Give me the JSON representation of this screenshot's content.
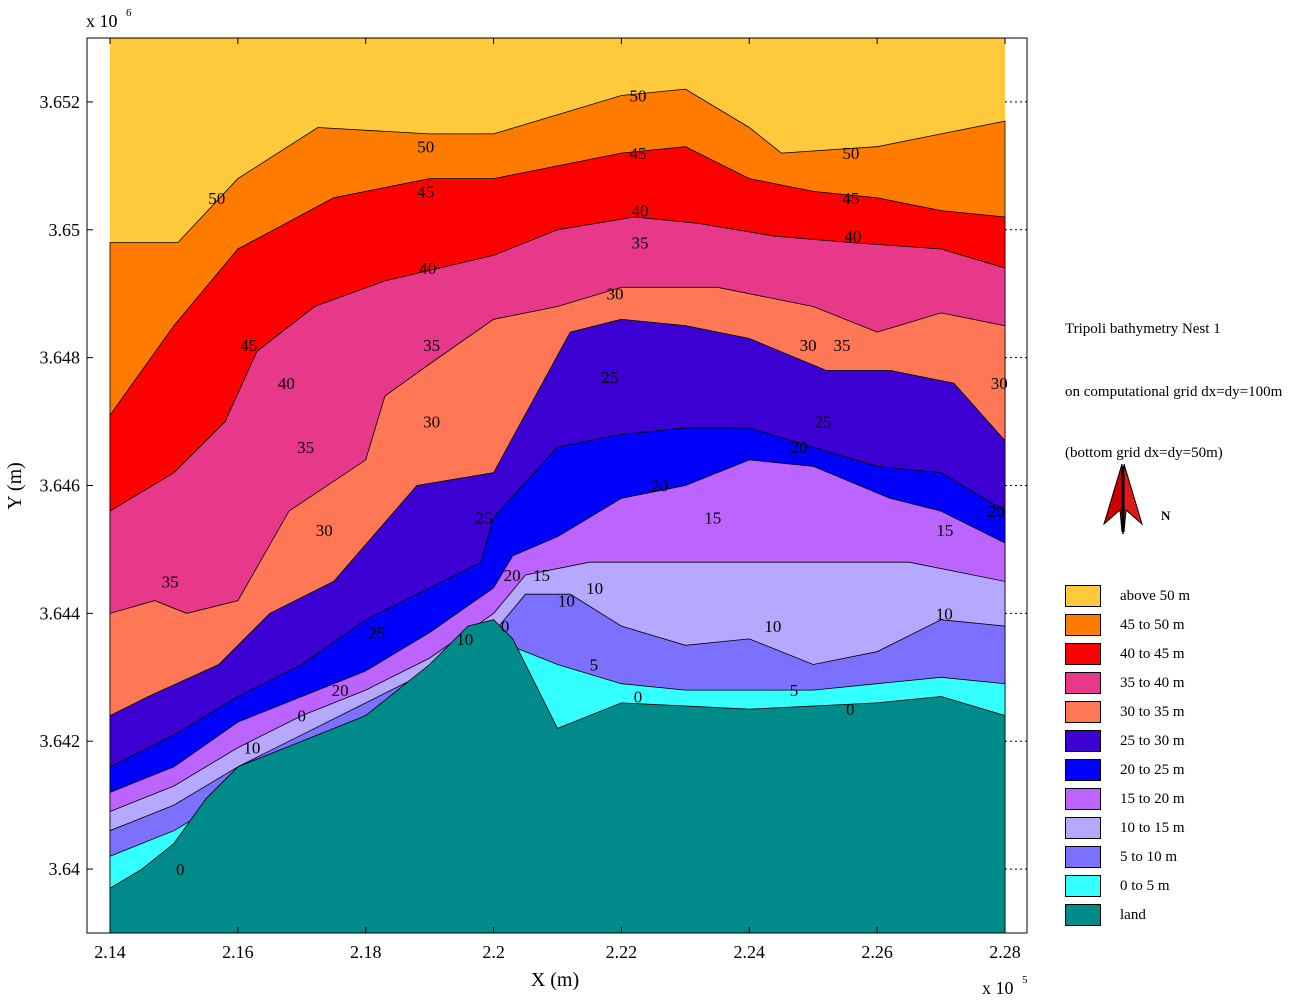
{
  "chart_data": {
    "type": "contour",
    "title_lines": [
      "Tripoli bathymetry Nest 1",
      "on computational grid dx=dy=100m",
      "(bottom grid dx=dy=50m)"
    ],
    "xlabel": "X (m)",
    "ylabel": "Y (m)",
    "x_multiplier_label": "x 10",
    "x_multiplier_exp": "5",
    "y_multiplier_label": "x 10",
    "y_multiplier_exp": "6",
    "xlim": [
      2.14,
      2.28
    ],
    "ylim": [
      3.639,
      3.653
    ],
    "x_ticks": [
      2.14,
      2.16,
      2.18,
      2.2,
      2.22,
      2.24,
      2.26,
      2.28
    ],
    "x_tick_labels": [
      "2.14",
      "2.16",
      "2.18",
      "2.2",
      "2.22",
      "2.24",
      "2.26",
      "2.28"
    ],
    "y_ticks": [
      3.64,
      3.642,
      3.644,
      3.646,
      3.648,
      3.65,
      3.652
    ],
    "y_tick_labels": [
      "3.64",
      "3.642",
      "3.644",
      "3.646",
      "3.648",
      "3.65",
      "3.652"
    ],
    "legend": [
      {
        "label": "above 50 m",
        "color": "#ffc93c"
      },
      {
        "label": "45 to 50 m",
        "color": "#ff7b00"
      },
      {
        "label": "40 to 45 m",
        "color": "#ff0000"
      },
      {
        "label": "35 to 40 m",
        "color": "#e8388a"
      },
      {
        "label": "30 to 35 m",
        "color": "#ff7755"
      },
      {
        "label": "25 to 30 m",
        "color": "#3c00d2"
      },
      {
        "label": "20 to 25 m",
        "color": "#0000ff"
      },
      {
        "label": "15 to 20 m",
        "color": "#bc64ff"
      },
      {
        "label": "10 to 15 m",
        "color": "#b6a8ff"
      },
      {
        "label": "5 to 10 m",
        "color": "#7c70ff"
      },
      {
        "label": "0 to 5 m",
        "color": "#33ffff"
      },
      {
        "label": "land",
        "color": "#008b8b"
      }
    ],
    "bands": [
      {
        "name": "above 50 m",
        "color": "#ffc93c",
        "boundary": [
          [
            2.14,
            3.6498
          ],
          [
            2.1506,
            3.6498
          ],
          [
            2.16,
            3.6508
          ],
          [
            2.1725,
            3.6516
          ],
          [
            2.19,
            3.6515
          ],
          [
            2.2,
            3.6515
          ],
          [
            2.21,
            3.6518
          ],
          [
            2.22,
            3.6521
          ],
          [
            2.23,
            3.6522
          ],
          [
            2.24,
            3.6516
          ],
          [
            2.245,
            3.6512
          ],
          [
            2.26,
            3.6513
          ],
          [
            2.27,
            3.6515
          ],
          [
            2.28,
            3.6517
          ]
        ]
      },
      {
        "name": "45 to 50 m",
        "color": "#ff7b00",
        "boundary": [
          [
            2.14,
            3.6471
          ],
          [
            2.15,
            3.6485
          ],
          [
            2.16,
            3.6497
          ],
          [
            2.175,
            3.6505
          ],
          [
            2.19,
            3.6508
          ],
          [
            2.2,
            3.6508
          ],
          [
            2.21,
            3.651
          ],
          [
            2.22,
            3.6512
          ],
          [
            2.23,
            3.6513
          ],
          [
            2.24,
            3.6508
          ],
          [
            2.25,
            3.6506
          ],
          [
            2.26,
            3.6505
          ],
          [
            2.27,
            3.6503
          ],
          [
            2.28,
            3.6502
          ]
        ]
      },
      {
        "name": "40 to 45 m",
        "color": "#ff0000",
        "boundary": [
          [
            2.14,
            3.6456
          ],
          [
            2.15,
            3.6462
          ],
          [
            2.158,
            3.647
          ],
          [
            2.163,
            3.6481
          ],
          [
            2.172,
            3.6488
          ],
          [
            2.183,
            3.6492
          ],
          [
            2.2,
            3.6496
          ],
          [
            2.21,
            3.65
          ],
          [
            2.222,
            3.6502
          ],
          [
            2.232,
            3.6501
          ],
          [
            2.244,
            3.6499
          ],
          [
            2.256,
            3.6498
          ],
          [
            2.27,
            3.6497
          ],
          [
            2.28,
            3.6494
          ]
        ]
      },
      {
        "name": "35 to 40 m",
        "color": "#e8388a",
        "boundary": [
          [
            2.14,
            3.644
          ],
          [
            2.147,
            3.6442
          ],
          [
            2.152,
            3.644
          ],
          [
            2.16,
            3.6442
          ],
          [
            2.168,
            3.6456
          ],
          [
            2.18,
            3.6464
          ],
          [
            2.183,
            3.6474
          ],
          [
            2.19,
            3.6479
          ],
          [
            2.2,
            3.6486
          ],
          [
            2.21,
            3.6488
          ],
          [
            2.22,
            3.6491
          ],
          [
            2.235,
            3.6491
          ],
          [
            2.25,
            3.6488
          ],
          [
            2.26,
            3.6484
          ],
          [
            2.27,
            3.6487
          ],
          [
            2.28,
            3.6485
          ]
        ]
      },
      {
        "name": "30 to 35 m",
        "color": "#ff7755",
        "boundary": [
          [
            2.14,
            3.6424
          ],
          [
            2.146,
            3.6427
          ],
          [
            2.157,
            3.6432
          ],
          [
            2.165,
            3.644
          ],
          [
            2.175,
            3.6445
          ],
          [
            2.188,
            3.646
          ],
          [
            2.2,
            3.6462
          ],
          [
            2.206,
            3.6473
          ],
          [
            2.212,
            3.6484
          ],
          [
            2.22,
            3.6486
          ],
          [
            2.23,
            3.6485
          ],
          [
            2.24,
            3.6483
          ],
          [
            2.252,
            3.6478
          ],
          [
            2.262,
            3.6478
          ],
          [
            2.272,
            3.6476
          ],
          [
            2.28,
            3.6467
          ]
        ]
      },
      {
        "name": "25 to 30 m",
        "color": "#3c00d2",
        "boundary": [
          [
            2.14,
            3.6416
          ],
          [
            2.15,
            3.6421
          ],
          [
            2.16,
            3.6427
          ],
          [
            2.17,
            3.6432
          ],
          [
            2.18,
            3.6439
          ],
          [
            2.19,
            3.6444
          ],
          [
            2.198,
            3.6448
          ],
          [
            2.2,
            3.6455
          ],
          [
            2.21,
            3.6466
          ],
          [
            2.22,
            3.6468
          ],
          [
            2.23,
            3.6469
          ],
          [
            2.24,
            3.6469
          ],
          [
            2.25,
            3.6466
          ],
          [
            2.26,
            3.6463
          ],
          [
            2.27,
            3.6462
          ],
          [
            2.28,
            3.6456
          ]
        ]
      },
      {
        "name": "20 to 25 m",
        "color": "#0000ff",
        "boundary": [
          [
            2.14,
            3.6412
          ],
          [
            2.15,
            3.6416
          ],
          [
            2.16,
            3.6423
          ],
          [
            2.17,
            3.6427
          ],
          [
            2.18,
            3.6431
          ],
          [
            2.19,
            3.6437
          ],
          [
            2.2,
            3.6444
          ],
          [
            2.203,
            3.6449
          ],
          [
            2.21,
            3.6452
          ],
          [
            2.22,
            3.6458
          ],
          [
            2.23,
            3.646
          ],
          [
            2.24,
            3.6464
          ],
          [
            2.25,
            3.6463
          ],
          [
            2.262,
            3.6458
          ],
          [
            2.27,
            3.6456
          ],
          [
            2.28,
            3.6451
          ]
        ]
      },
      {
        "name": "15 to 20 m",
        "color": "#bc64ff",
        "boundary": [
          [
            2.14,
            3.6409
          ],
          [
            2.15,
            3.6413
          ],
          [
            2.16,
            3.6419
          ],
          [
            2.17,
            3.6424
          ],
          [
            2.18,
            3.6428
          ],
          [
            2.19,
            3.6433
          ],
          [
            2.2,
            3.644
          ],
          [
            2.205,
            3.6446
          ],
          [
            2.215,
            3.6448
          ],
          [
            2.225,
            3.6448
          ],
          [
            2.24,
            3.6448
          ],
          [
            2.255,
            3.6448
          ],
          [
            2.265,
            3.6448
          ],
          [
            2.275,
            3.6446
          ],
          [
            2.28,
            3.6445
          ]
        ]
      },
      {
        "name": "10 to 15 m",
        "color": "#b6a8ff",
        "boundary": [
          [
            2.14,
            3.6406
          ],
          [
            2.15,
            3.641
          ],
          [
            2.16,
            3.6416
          ],
          [
            2.17,
            3.6421
          ],
          [
            2.18,
            3.6426
          ],
          [
            2.19,
            3.6431
          ],
          [
            2.2,
            3.6437
          ],
          [
            2.205,
            3.6443
          ],
          [
            2.212,
            3.6443
          ],
          [
            2.22,
            3.6438
          ],
          [
            2.23,
            3.6435
          ],
          [
            2.24,
            3.6436
          ],
          [
            2.25,
            3.6432
          ],
          [
            2.26,
            3.6434
          ],
          [
            2.27,
            3.6439
          ],
          [
            2.28,
            3.6438
          ]
        ]
      },
      {
        "name": "5 to 10 m",
        "color": "#7c70ff",
        "boundary": [
          [
            2.14,
            3.6402
          ],
          [
            2.15,
            3.6406
          ],
          [
            2.16,
            3.6412
          ],
          [
            2.17,
            3.6418
          ],
          [
            2.18,
            3.6424
          ],
          [
            2.19,
            3.643
          ],
          [
            2.2,
            3.6436
          ],
          [
            2.21,
            3.6432
          ],
          [
            2.22,
            3.6429
          ],
          [
            2.23,
            3.6428
          ],
          [
            2.24,
            3.6428
          ],
          [
            2.25,
            3.6428
          ],
          [
            2.26,
            3.6429
          ],
          [
            2.27,
            3.643
          ],
          [
            2.28,
            3.6429
          ]
        ]
      },
      {
        "name": "0 to 5 m",
        "color": "#33ffff",
        "boundary": [
          [
            2.14,
            3.6397
          ],
          [
            2.145,
            3.64
          ],
          [
            2.15,
            3.6404
          ],
          [
            2.155,
            3.6411
          ],
          [
            2.16,
            3.6416
          ],
          [
            2.17,
            3.642
          ],
          [
            2.18,
            3.6424
          ],
          [
            2.19,
            3.6432
          ],
          [
            2.196,
            3.6438
          ],
          [
            2.2,
            3.6439
          ],
          [
            2.203,
            3.6436
          ],
          [
            2.21,
            3.6422
          ],
          [
            2.22,
            3.6426
          ],
          [
            2.24,
            3.6425
          ],
          [
            2.26,
            3.6426
          ],
          [
            2.27,
            3.6427
          ],
          [
            2.28,
            3.6424
          ]
        ]
      }
    ],
    "land": {
      "name": "land",
      "color": "#008b8b",
      "boundary": [
        [
          2.14,
          3.6394
        ],
        [
          2.145,
          3.6395
        ],
        [
          2.15,
          3.6399
        ],
        [
          2.155,
          3.6408
        ],
        [
          2.16,
          3.6413
        ],
        [
          2.165,
          3.6418
        ],
        [
          2.17,
          3.642
        ],
        [
          2.18,
          3.6424
        ],
        [
          2.19,
          3.643
        ],
        [
          2.196,
          3.6435
        ],
        [
          2.2,
          3.6439
        ],
        [
          2.203,
          3.6436
        ],
        [
          2.206,
          3.643
        ],
        [
          2.21,
          3.6421
        ],
        [
          2.22,
          3.6425
        ],
        [
          2.23,
          3.6425
        ],
        [
          2.24,
          3.6425
        ],
        [
          2.25,
          3.6425
        ],
        [
          2.26,
          3.6425
        ],
        [
          2.27,
          3.6426
        ],
        [
          2.275,
          3.6424
        ],
        [
          2.28,
          3.6422
        ]
      ]
    },
    "contour_labels": [
      {
        "x": 2.2226,
        "y": 3.6521,
        "text": "50"
      },
      {
        "x": 2.1894,
        "y": 3.6513,
        "text": "50"
      },
      {
        "x": 2.1567,
        "y": 3.6505,
        "text": "50"
      },
      {
        "x": 2.2559,
        "y": 3.6512,
        "text": "50"
      },
      {
        "x": 2.2226,
        "y": 3.6512,
        "text": "45"
      },
      {
        "x": 2.1894,
        "y": 3.6506,
        "text": "45"
      },
      {
        "x": 2.1617,
        "y": 3.6482,
        "text": "45"
      },
      {
        "x": 2.2559,
        "y": 3.6505,
        "text": "45"
      },
      {
        "x": 2.2229,
        "y": 3.6503,
        "text": "40"
      },
      {
        "x": 2.1897,
        "y": 3.6494,
        "text": "40"
      },
      {
        "x": 2.2562,
        "y": 3.6499,
        "text": "40"
      },
      {
        "x": 2.1676,
        "y": 3.6476,
        "text": "40"
      },
      {
        "x": 2.2229,
        "y": 3.6498,
        "text": "35"
      },
      {
        "x": 2.1903,
        "y": 3.6482,
        "text": "35"
      },
      {
        "x": 2.2545,
        "y": 3.6482,
        "text": "35"
      },
      {
        "x": 2.1706,
        "y": 3.6466,
        "text": "35"
      },
      {
        "x": 2.1494,
        "y": 3.6445,
        "text": "35"
      },
      {
        "x": 2.219,
        "y": 3.649,
        "text": "30"
      },
      {
        "x": 2.2492,
        "y": 3.6482,
        "text": "30"
      },
      {
        "x": 2.2791,
        "y": 3.6476,
        "text": "30"
      },
      {
        "x": 2.1903,
        "y": 3.647,
        "text": "30"
      },
      {
        "x": 2.1735,
        "y": 3.6453,
        "text": "30"
      },
      {
        "x": 2.2182,
        "y": 3.6477,
        "text": "25"
      },
      {
        "x": 2.2515,
        "y": 3.647,
        "text": "25"
      },
      {
        "x": 2.1985,
        "y": 3.6455,
        "text": "25"
      },
      {
        "x": 2.1817,
        "y": 3.6437,
        "text": "25"
      },
      {
        "x": 2.2478,
        "y": 3.6466,
        "text": "20"
      },
      {
        "x": 2.226,
        "y": 3.646,
        "text": "20"
      },
      {
        "x": 2.2786,
        "y": 3.6456,
        "text": "20"
      },
      {
        "x": 2.2029,
        "y": 3.6446,
        "text": "20"
      },
      {
        "x": 2.2343,
        "y": 3.6455,
        "text": "15"
      },
      {
        "x": 2.2706,
        "y": 3.6453,
        "text": "15"
      },
      {
        "x": 2.2075,
        "y": 3.6446,
        "text": "15"
      },
      {
        "x": 2.2158,
        "y": 3.6444,
        "text": "10"
      },
      {
        "x": 2.2114,
        "y": 3.6442,
        "text": "10"
      },
      {
        "x": 2.2437,
        "y": 3.6438,
        "text": "10"
      },
      {
        "x": 2.2705,
        "y": 3.644,
        "text": "10"
      },
      {
        "x": 2.1955,
        "y": 3.6436,
        "text": "10"
      },
      {
        "x": 2.2157,
        "y": 3.6432,
        "text": "5"
      },
      {
        "x": 2.247,
        "y": 3.6428,
        "text": "5"
      },
      {
        "x": 2.2226,
        "y": 3.6427,
        "text": "0"
      },
      {
        "x": 2.2558,
        "y": 3.6425,
        "text": "0"
      },
      {
        "x": 2.2018,
        "y": 3.6438,
        "text": "0"
      },
      {
        "x": 2.176,
        "y": 3.6428,
        "text": "20"
      },
      {
        "x": 2.17,
        "y": 3.6424,
        "text": "0"
      },
      {
        "x": 2.1622,
        "y": 3.6419,
        "text": "10"
      },
      {
        "x": 2.151,
        "y": 3.64,
        "text": "0"
      }
    ]
  }
}
